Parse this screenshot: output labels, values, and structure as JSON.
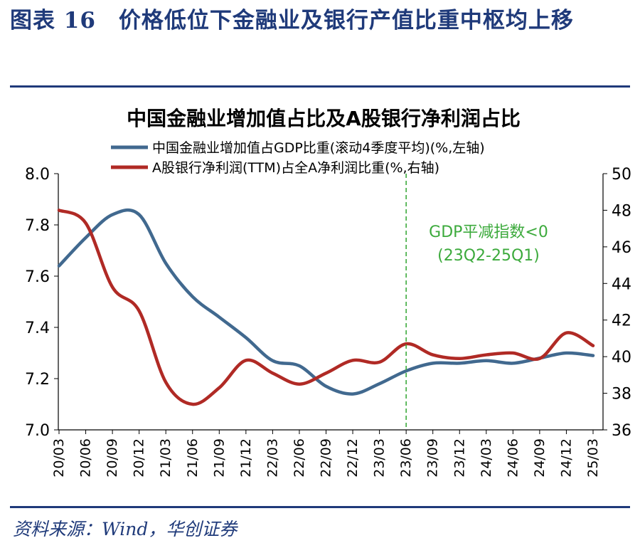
{
  "figure": {
    "title": "图表 16　价格低位下金融业及银行产值比重中枢均上移",
    "source": "资料来源：Wind，华创证券"
  },
  "colors": {
    "series1": "#41698f",
    "series2": "#b02a25",
    "annotation": "#3caa3c",
    "rule": "#1f3a7a"
  },
  "chart_data": {
    "type": "line",
    "title": "中国金融业增加值占比及A股银行净利润占比",
    "x": [
      "20/03",
      "20/06",
      "20/09",
      "20/12",
      "21/03",
      "21/06",
      "21/09",
      "21/12",
      "22/03",
      "22/06",
      "22/09",
      "22/12",
      "23/03",
      "23/06",
      "23/09",
      "23/12",
      "24/03",
      "24/06",
      "24/09",
      "24/12",
      "25/03"
    ],
    "left_axis": {
      "ylim": [
        7.0,
        8.0
      ],
      "ticks": [
        "7.0",
        "7.2",
        "7.4",
        "7.6",
        "7.8",
        "8.0"
      ]
    },
    "right_axis": {
      "ylim": [
        36,
        50
      ],
      "ticks": [
        "36",
        "38",
        "40",
        "42",
        "44",
        "46",
        "48",
        "50"
      ]
    },
    "series": [
      {
        "name": "中国金融业增加值占GDP比重(滚动4季度平均)(%,左轴)",
        "axis": "left",
        "values": [
          7.64,
          7.75,
          7.84,
          7.84,
          7.65,
          7.52,
          7.44,
          7.36,
          7.27,
          7.25,
          7.17,
          7.14,
          7.18,
          7.23,
          7.26,
          7.26,
          7.27,
          7.26,
          7.28,
          7.3,
          7.29
        ]
      },
      {
        "name": "A股银行净利润(TTM)占全A净利润比重(%,右轴)",
        "axis": "right",
        "values": [
          48.0,
          47.3,
          43.8,
          42.5,
          38.6,
          37.4,
          38.3,
          39.8,
          39.1,
          38.5,
          39.1,
          39.8,
          39.7,
          40.7,
          40.1,
          39.9,
          40.1,
          40.2,
          39.9,
          41.3,
          40.6
        ]
      }
    ],
    "vline": {
      "at": "23/06"
    },
    "annotation": {
      "line1": "GDP平减指数<0",
      "line2": "(23Q2-25Q1)"
    }
  }
}
